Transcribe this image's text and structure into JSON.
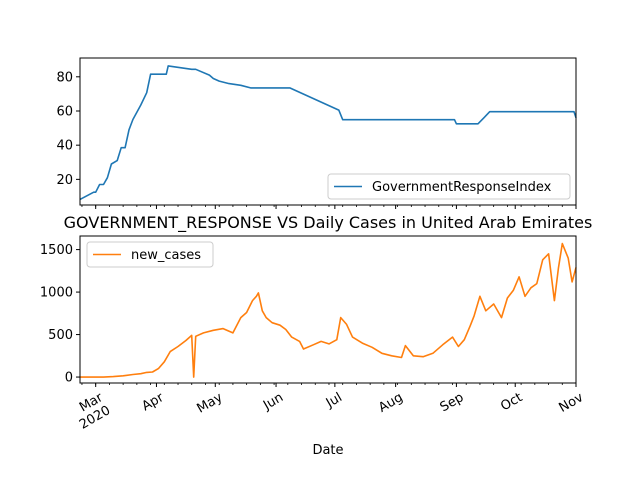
{
  "chart_data": [
    {
      "type": "line",
      "title": "",
      "xlabel": "",
      "ylabel": "",
      "ylim": [
        5,
        91
      ],
      "yticks": [
        20,
        40,
        60,
        80
      ],
      "legend": "lower-right",
      "grid": false,
      "series": [
        {
          "name": "GovernmentResponseIndex",
          "color": "#1f77b4",
          "x": [
            "2020-02-22",
            "2020-02-29",
            "2020-03-01",
            "2020-03-03",
            "2020-03-05",
            "2020-03-07",
            "2020-03-09",
            "2020-03-12",
            "2020-03-14",
            "2020-03-16",
            "2020-03-18",
            "2020-03-20",
            "2020-03-24",
            "2020-03-27",
            "2020-03-29",
            "2020-03-31",
            "2020-04-03",
            "2020-04-06",
            "2020-04-07",
            "2020-04-19",
            "2020-04-21",
            "2020-04-28",
            "2020-04-30",
            "2020-05-03",
            "2020-05-08",
            "2020-05-14",
            "2020-05-19",
            "2020-06-06",
            "2020-06-08",
            "2020-07-03",
            "2020-07-05",
            "2020-08-31",
            "2020-09-01",
            "2020-09-12",
            "2020-09-15",
            "2020-09-18",
            "2020-10-31",
            "2020-11-01"
          ],
          "values": [
            8.3,
            12.5,
            12.5,
            17,
            17,
            21,
            29,
            31,
            38.5,
            38.5,
            49,
            55,
            63.5,
            70.7,
            81.5,
            81.5,
            81.5,
            81.5,
            86.4,
            84.4,
            84.4,
            81,
            79,
            77.5,
            76,
            75,
            73.5,
            73.5,
            73.5,
            60.5,
            54.9,
            54.9,
            52.5,
            52.5,
            56,
            59.6,
            59.6,
            56
          ]
        }
      ]
    },
    {
      "type": "line",
      "title": "GOVERNMENT_RESPONSE VS Daily Cases in United Arab Emirates",
      "xlabel": "Date",
      "ylabel": "",
      "ylim": [
        -70,
        1660
      ],
      "yticks": [
        0,
        500,
        1000,
        1500
      ],
      "legend": "upper-left",
      "grid": false,
      "xtick_labels": [
        {
          "date": "2020-03-01",
          "label": "Mar\n2020"
        },
        {
          "date": "2020-04-01",
          "label": "Apr"
        },
        {
          "date": "2020-05-01",
          "label": "May"
        },
        {
          "date": "2020-06-01",
          "label": "Jun"
        },
        {
          "date": "2020-07-01",
          "label": "Jul"
        },
        {
          "date": "2020-08-01",
          "label": "Aug"
        },
        {
          "date": "2020-09-01",
          "label": "Sep"
        },
        {
          "date": "2020-10-01",
          "label": "Oct"
        },
        {
          "date": "2020-11-01",
          "label": "Nov"
        }
      ],
      "series": [
        {
          "name": "new_cases",
          "color": "#ff7f0e",
          "x": [
            "2020-02-22",
            "2020-03-05",
            "2020-03-10",
            "2020-03-15",
            "2020-03-20",
            "2020-03-24",
            "2020-03-27",
            "2020-03-30",
            "2020-04-02",
            "2020-04-05",
            "2020-04-08",
            "2020-04-12",
            "2020-04-16",
            "2020-04-19",
            "2020-04-20",
            "2020-04-21",
            "2020-04-25",
            "2020-04-30",
            "2020-05-05",
            "2020-05-10",
            "2020-05-14",
            "2020-05-17",
            "2020-05-20",
            "2020-05-22",
            "2020-05-23",
            "2020-05-25",
            "2020-05-27",
            "2020-05-30",
            "2020-06-03",
            "2020-06-06",
            "2020-06-09",
            "2020-06-13",
            "2020-06-15",
            "2020-06-20",
            "2020-06-24",
            "2020-06-28",
            "2020-07-02",
            "2020-07-04",
            "2020-07-07",
            "2020-07-10",
            "2020-07-15",
            "2020-07-20",
            "2020-07-25",
            "2020-07-30",
            "2020-08-04",
            "2020-08-06",
            "2020-08-10",
            "2020-08-15",
            "2020-08-20",
            "2020-08-25",
            "2020-08-30",
            "2020-09-02",
            "2020-09-05",
            "2020-09-08",
            "2020-09-10",
            "2020-09-13",
            "2020-09-16",
            "2020-09-20",
            "2020-09-24",
            "2020-09-27",
            "2020-09-30",
            "2020-10-03",
            "2020-10-06",
            "2020-10-09",
            "2020-10-12",
            "2020-10-15",
            "2020-10-18",
            "2020-10-21",
            "2020-10-23",
            "2020-10-25",
            "2020-10-28",
            "2020-10-30",
            "2020-11-01"
          ],
          "values": [
            0,
            0,
            5,
            15,
            30,
            40,
            55,
            60,
            100,
            180,
            300,
            360,
            430,
            490,
            0,
            480,
            520,
            550,
            570,
            520,
            700,
            760,
            900,
            950,
            990,
            780,
            700,
            640,
            610,
            560,
            470,
            420,
            330,
            380,
            420,
            390,
            440,
            700,
            620,
            470,
            400,
            350,
            280,
            250,
            230,
            370,
            250,
            240,
            280,
            380,
            470,
            360,
            440,
            600,
            720,
            950,
            780,
            860,
            700,
            930,
            1020,
            1180,
            950,
            1050,
            1100,
            1380,
            1450,
            900,
            1280,
            1570,
            1400,
            1120,
            1290
          ]
        }
      ]
    }
  ]
}
